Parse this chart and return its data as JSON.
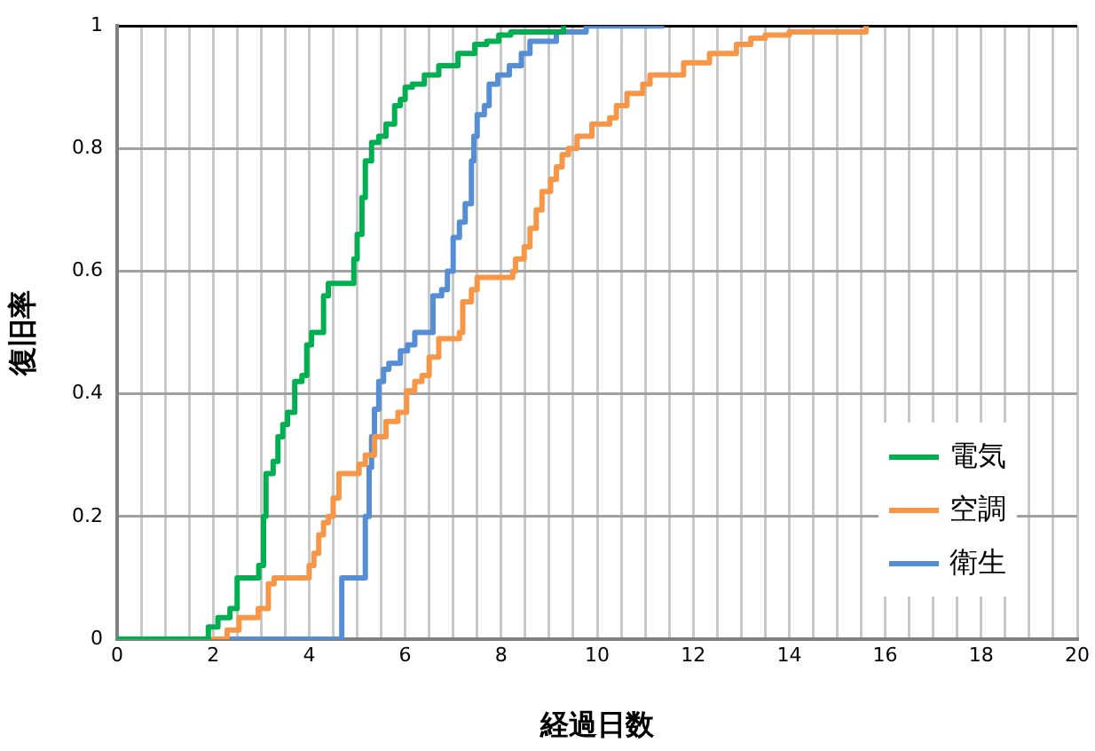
{
  "chart_data": {
    "type": "step",
    "xlabel": "経過日数",
    "ylabel": "復旧率",
    "xlim": [
      0,
      20
    ],
    "xticks": [
      0,
      {
        "value": 0.5,
        "label": null
      },
      {
        "value": 1,
        "label": null
      },
      {
        "value": 1.5,
        "label": null
      },
      2,
      {
        "value": 2.5,
        "label": null
      },
      {
        "value": 3,
        "label": null
      },
      {
        "value": 3.5,
        "label": null
      },
      4,
      {
        "value": 4.5,
        "label": null
      },
      {
        "value": 5,
        "label": null
      },
      {
        "value": 5.5,
        "label": null
      },
      6,
      {
        "value": 6.5,
        "label": null
      },
      {
        "value": 7,
        "label": null
      },
      {
        "value": 7.5,
        "label": null
      },
      8,
      {
        "value": 8.5,
        "label": null
      },
      {
        "value": 9,
        "label": null
      },
      {
        "value": 9.5,
        "label": null
      },
      10,
      {
        "value": 10.5,
        "label": null
      },
      {
        "value": 11,
        "label": null
      },
      {
        "value": 11.5,
        "label": null
      },
      12,
      {
        "value": 12.5,
        "label": null
      },
      {
        "value": 13,
        "label": null
      },
      {
        "value": 13.5,
        "label": null
      },
      14,
      {
        "value": 14.5,
        "label": null
      },
      {
        "value": 15,
        "label": null
      },
      {
        "value": 15.5,
        "label": null
      },
      16,
      {
        "value": 16.5,
        "label": null
      },
      {
        "value": 17,
        "label": null
      },
      {
        "value": 17.5,
        "label": null
      },
      18,
      {
        "value": 18.5,
        "label": null
      },
      {
        "value": 19,
        "label": null
      },
      {
        "value": 19.5,
        "label": null
      },
      20
    ],
    "ylim": [
      0,
      1
    ],
    "yticks": [
      0,
      0.2,
      0.4,
      0.6,
      0.8,
      1
    ],
    "grid": true,
    "legend": "right",
    "marker": "none",
    "series": [
      {
        "name": "電気",
        "color": "#00b050",
        "x": [
          0,
          1.9,
          2.1,
          2.35,
          2.5,
          2.95,
          3.05,
          3.1,
          3.25,
          3.35,
          3.45,
          3.55,
          3.7,
          3.85,
          3.95,
          4.05,
          4.3,
          4.4,
          4.93,
          5.0,
          5.1,
          5.17,
          5.3,
          5.45,
          5.6,
          5.78,
          5.9,
          6.0,
          6.15,
          6.4,
          6.7,
          7.1,
          7.45,
          7.7,
          7.95,
          8.2,
          9.3
        ],
        "values": [
          0,
          0.02,
          0.035,
          0.05,
          0.1,
          0.12,
          0.2,
          0.27,
          0.29,
          0.33,
          0.35,
          0.37,
          0.42,
          0.43,
          0.48,
          0.5,
          0.56,
          0.58,
          0.62,
          0.66,
          0.72,
          0.78,
          0.81,
          0.82,
          0.84,
          0.87,
          0.88,
          0.9,
          0.905,
          0.92,
          0.935,
          0.955,
          0.97,
          0.975,
          0.985,
          0.99,
          1
        ]
      },
      {
        "name": "空調",
        "color": "#f79646",
        "x": [
          0,
          2.29,
          2.54,
          2.94,
          3.15,
          3.27,
          4.0,
          4.1,
          4.2,
          4.3,
          4.4,
          4.5,
          4.62,
          5.04,
          5.17,
          5.36,
          5.6,
          5.85,
          6.03,
          6.2,
          6.35,
          6.5,
          6.7,
          7.13,
          7.2,
          7.38,
          7.5,
          8.24,
          8.3,
          8.48,
          8.6,
          8.73,
          8.85,
          9.03,
          9.15,
          9.27,
          9.4,
          9.58,
          9.89,
          10.26,
          10.4,
          10.62,
          10.95,
          11.1,
          11.8,
          12.34,
          12.9,
          13.2,
          13.5,
          14.0,
          15.6
        ],
        "values": [
          0,
          0.015,
          0.035,
          0.05,
          0.09,
          0.1,
          0.12,
          0.14,
          0.17,
          0.19,
          0.2,
          0.23,
          0.27,
          0.285,
          0.3,
          0.33,
          0.355,
          0.37,
          0.405,
          0.42,
          0.43,
          0.46,
          0.49,
          0.5,
          0.55,
          0.57,
          0.59,
          0.6,
          0.62,
          0.64,
          0.67,
          0.7,
          0.73,
          0.75,
          0.77,
          0.79,
          0.8,
          0.82,
          0.84,
          0.85,
          0.87,
          0.89,
          0.905,
          0.92,
          0.94,
          0.955,
          0.97,
          0.98,
          0.985,
          0.99,
          1
        ]
      },
      {
        "name": "衛生",
        "color": "#558ed5",
        "x": [
          0,
          4.68,
          5.17,
          5.25,
          5.3,
          5.36,
          5.45,
          5.55,
          5.66,
          5.9,
          6.05,
          6.2,
          6.58,
          6.76,
          6.88,
          7.0,
          7.13,
          7.25,
          7.38,
          7.43,
          7.5,
          7.65,
          7.75,
          7.93,
          8.17,
          8.42,
          8.6,
          9.15,
          9.77,
          11.4
        ],
        "values": [
          0,
          0.1,
          0.2,
          0.28,
          0.33,
          0.375,
          0.42,
          0.44,
          0.45,
          0.47,
          0.48,
          0.5,
          0.56,
          0.57,
          0.6,
          0.655,
          0.68,
          0.71,
          0.78,
          0.82,
          0.855,
          0.87,
          0.905,
          0.92,
          0.935,
          0.955,
          0.975,
          0.99,
          1,
          1
        ]
      }
    ]
  }
}
